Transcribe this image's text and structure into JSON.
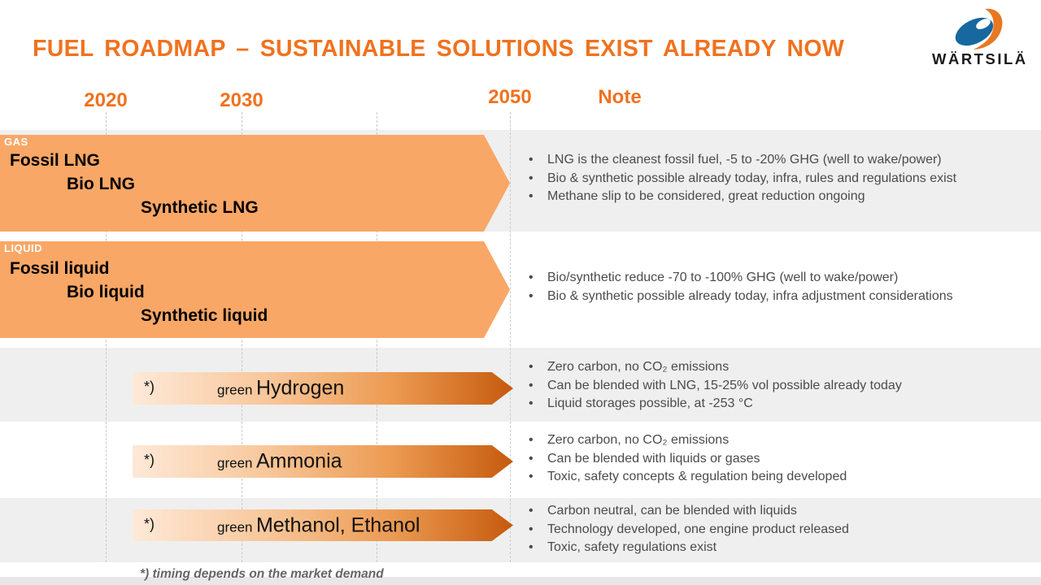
{
  "title": "FUEL ROADMAP – SUSTAINABLE SOLUTIONS EXIST ALREADY NOW",
  "logo": {
    "brand": "WÄRTSILÄ"
  },
  "timeline": {
    "years": [
      "2020",
      "2030",
      "2050"
    ],
    "note_label": "Note"
  },
  "bands": [
    {
      "category": "GAS",
      "items": [
        "Fossil LNG",
        "Bio LNG",
        "Synthetic LNG"
      ],
      "notes": [
        "LNG is the cleanest fossil fuel, -5 to -20% GHG (well to wake/power)",
        "Bio & synthetic possible already today, infra, rules and regulations exist",
        "Methane slip to be considered, great reduction ongoing"
      ]
    },
    {
      "category": "LIQUID",
      "items": [
        "Fossil liquid",
        "Bio liquid",
        "Synthetic liquid"
      ],
      "notes": [
        "Bio/synthetic reduce -70 to -100% GHG (well to wake/power)",
        "Bio & synthetic possible already today, infra adjustment considerations"
      ]
    }
  ],
  "future_fuels": [
    {
      "asterisk": "*)",
      "prefix": "green",
      "name": "Hydrogen",
      "notes": [
        "Zero carbon, no CO₂ emissions",
        "Can be blended with LNG, 15-25% vol possible already today",
        "Liquid storages possible, at -253 °C"
      ]
    },
    {
      "asterisk": "*)",
      "prefix": "green",
      "name": "Ammonia",
      "notes": [
        "Zero carbon, no CO₂ emissions",
        "Can be blended with liquids or gases",
        "Toxic, safety concepts & regulation being developed"
      ]
    },
    {
      "asterisk": "*)",
      "prefix": "green",
      "name": "Methanol, Ethanol",
      "notes": [
        "Carbon neutral, can be blended with liquids",
        "Technology developed, one engine product released",
        "Toxic, safety regulations exist"
      ]
    }
  ],
  "footnote": "*)  timing depends on the market demand",
  "colors": {
    "accent_orange": "#F0721E",
    "big_arrow_fill": "#F9A766",
    "gradient_start": "#FDE9D8",
    "gradient_end": "#C55A0E",
    "band_gray": "#EFEFEF",
    "note_text": "#4B4B4B",
    "logo_blue": "#16689F",
    "logo_orange": "#E87722"
  }
}
